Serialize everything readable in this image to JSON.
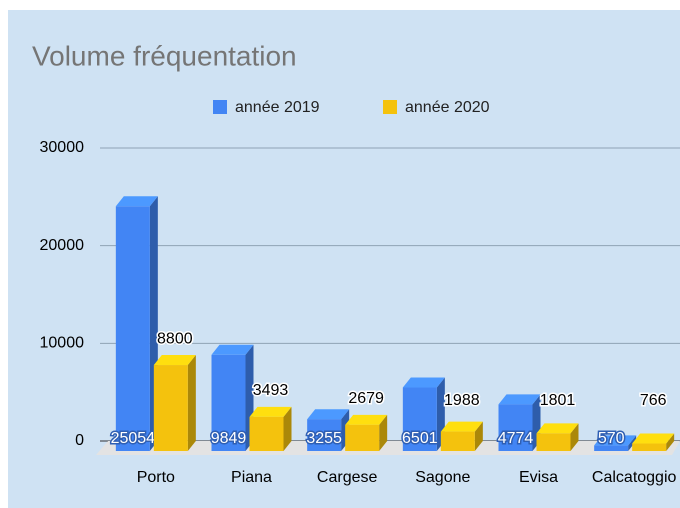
{
  "chart_data": {
    "type": "bar3d",
    "title": "Volume fréquentation",
    "categories": [
      "Porto",
      "Piana",
      "Cargese",
      "Sagone",
      "Evisa",
      "Calcatoggio"
    ],
    "series": [
      {
        "name": "année 2019",
        "color": "#4285f4",
        "values": [
          25054,
          9849,
          3255,
          6501,
          4774,
          570
        ]
      },
      {
        "name": "année 2020",
        "color": "#f4c20d",
        "values": [
          8800,
          3493,
          2679,
          1988,
          1801,
          766
        ]
      }
    ],
    "ylim": [
      0,
      30000
    ],
    "yticks": [
      0,
      10000,
      20000,
      30000
    ],
    "grid": true,
    "legend": "top"
  }
}
